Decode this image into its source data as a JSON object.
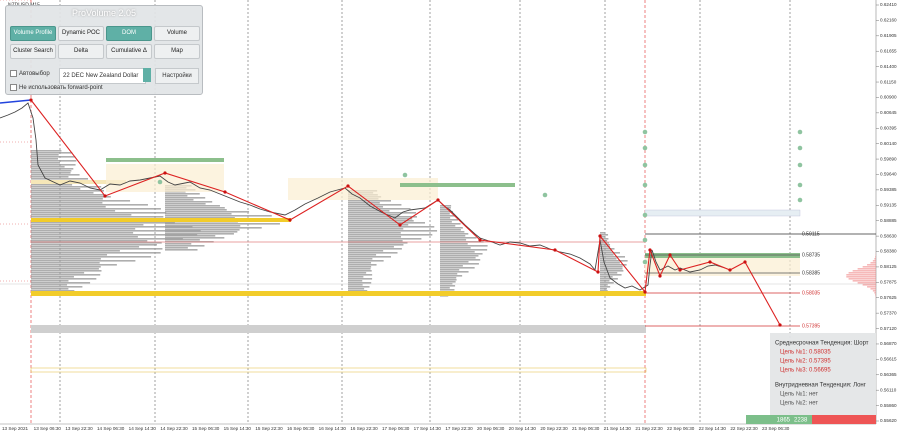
{
  "header": {
    "symbol": "NZDUSD,M15"
  },
  "panel": {
    "title": "ProVolume 2.05",
    "buttons": [
      "Volume Profile",
      "Dynamic POC",
      "DOM",
      "Volume",
      "Cluster Search",
      "Delta",
      "Cumulative Δ",
      "Map"
    ],
    "auto_select": "Автовыбор",
    "instrument": "22 DEC New Zealand Dollar",
    "settings": "Настройки",
    "forward_point": "Не использовать forward-point"
  },
  "price_axis": {
    "labels": [
      "0.62410",
      "0.62160",
      "0.61905",
      "0.61655",
      "0.61400",
      "0.61150",
      "0.60900",
      "0.60645",
      "0.60395",
      "0.60140",
      "0.59890",
      "0.59640",
      "0.59385",
      "0.59135",
      "0.58885",
      "0.58630",
      "0.58380",
      "0.58125",
      "0.57875",
      "0.57625",
      "0.57370",
      "0.57120",
      "0.56870",
      "0.56615",
      "0.56365",
      "0.56110",
      "0.55860",
      "0.55620"
    ]
  },
  "time_axis": {
    "labels": [
      "13 Sep 2021",
      "13 Sep 06:30",
      "13 Sep 22:30",
      "14 Sep 06:30",
      "14 Sep 14:30",
      "14 Sep 22:30",
      "15 Sep 06:30",
      "15 Sep 14:30",
      "15 Sep 22:30",
      "16 Sep 06:30",
      "16 Sep 14:30",
      "16 Sep 22:30",
      "17 Sep 06:30",
      "17 Sep 14:30",
      "17 Sep 22:30",
      "20 Sep 06:30",
      "20 Sep 14:30",
      "20 Sep 22:30",
      "21 Sep 06:30",
      "21 Sep 14:30",
      "21 Sep 22:30",
      "22 Sep 06:30",
      "22 Sep 14:30",
      "22 Sep 22:30",
      "23 Sep 06:30"
    ]
  },
  "level_labels": [
    "0.59115",
    "0.58735",
    "0.58385",
    "0.58035",
    "0.57395"
  ],
  "info": {
    "medium_term": "Среднесрочная Тенденция: Шорт",
    "medium_targets": [
      "Цель №1: 0.58035",
      "Цель №2: 0.57395",
      "Цель №3: 0.56695"
    ],
    "intraday": "Внутридневная Тенденция: Лонг",
    "intraday_targets": [
      "Цель №1: нет",
      "Цель №2: нет"
    ]
  },
  "footer": {
    "buy": "1865",
    "sell": "2238"
  }
}
